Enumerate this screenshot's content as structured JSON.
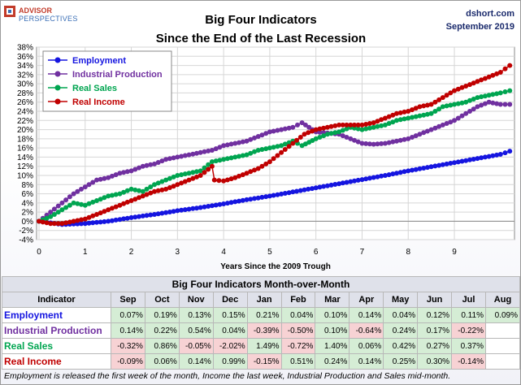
{
  "logo": {
    "main": "ADVISOR",
    "sub": "PERSPECTIVES"
  },
  "source": "dshort.com",
  "date": "September 2019",
  "chart_data": {
    "type": "line",
    "title": "Big Four Indicators",
    "subtitle": "Since the End of the Last Recession",
    "xlabel": "Years Since the 2009 Trough",
    "ylabel": "",
    "xlim": [
      0,
      10.25
    ],
    "ylim": [
      -4,
      38
    ],
    "x_ticks": [
      "0",
      "1",
      "2",
      "3",
      "4",
      "5",
      "6",
      "7",
      "8",
      "9"
    ],
    "y_ticks": [
      "38%",
      "36%",
      "34%",
      "32%",
      "30%",
      "28%",
      "26%",
      "24%",
      "22%",
      "20%",
      "18%",
      "16%",
      "14%",
      "12%",
      "10%",
      "8%",
      "6%",
      "4%",
      "2%",
      "0%",
      "-2%",
      "-4%"
    ],
    "grid": true,
    "legend_position": "top-left",
    "series": [
      {
        "name": "Employment",
        "color": "#1515e0",
        "points": [
          [
            0,
            0
          ],
          [
            0.5,
            -0.7
          ],
          [
            1,
            -0.5
          ],
          [
            1.5,
            0
          ],
          [
            2,
            0.8
          ],
          [
            2.5,
            1.5
          ],
          [
            3,
            2.3
          ],
          [
            3.5,
            3
          ],
          [
            4,
            3.8
          ],
          [
            4.5,
            4.7
          ],
          [
            5,
            5.5
          ],
          [
            5.5,
            6.4
          ],
          [
            6,
            7.3
          ],
          [
            6.5,
            8.2
          ],
          [
            7,
            9.1
          ],
          [
            7.5,
            10
          ],
          [
            8,
            11
          ],
          [
            8.5,
            11.9
          ],
          [
            9,
            12.8
          ],
          [
            9.5,
            13.7
          ],
          [
            10,
            14.6
          ],
          [
            10.2,
            15.3
          ]
        ]
      },
      {
        "name": "Industrial Production",
        "color": "#7030a0",
        "points": [
          [
            0,
            0
          ],
          [
            0.25,
            2
          ],
          [
            0.5,
            4
          ],
          [
            0.75,
            6
          ],
          [
            1,
            7.5
          ],
          [
            1.25,
            9
          ],
          [
            1.5,
            9.5
          ],
          [
            1.75,
            10.5
          ],
          [
            2,
            11
          ],
          [
            2.25,
            12
          ],
          [
            2.5,
            12.5
          ],
          [
            2.75,
            13.5
          ],
          [
            3,
            14
          ],
          [
            3.25,
            14.5
          ],
          [
            3.5,
            15
          ],
          [
            3.75,
            15.5
          ],
          [
            4,
            16.5
          ],
          [
            4.25,
            17
          ],
          [
            4.5,
            17.5
          ],
          [
            4.75,
            18.5
          ],
          [
            5,
            19.5
          ],
          [
            5.25,
            20
          ],
          [
            5.5,
            20.5
          ],
          [
            5.7,
            21.5
          ],
          [
            6,
            19.5
          ],
          [
            6.5,
            19
          ],
          [
            7,
            17
          ],
          [
            7.25,
            16.8
          ],
          [
            7.5,
            17
          ],
          [
            7.75,
            17.5
          ],
          [
            8,
            18
          ],
          [
            8.25,
            19
          ],
          [
            8.5,
            20
          ],
          [
            8.75,
            21
          ],
          [
            9,
            22
          ],
          [
            9.25,
            23.5
          ],
          [
            9.5,
            25
          ],
          [
            9.75,
            26
          ],
          [
            10,
            25.5
          ],
          [
            10.2,
            25.5
          ]
        ]
      },
      {
        "name": "Real Sales",
        "color": "#00a550",
        "points": [
          [
            0,
            0
          ],
          [
            0.25,
            1
          ],
          [
            0.5,
            2.5
          ],
          [
            0.75,
            4
          ],
          [
            1,
            3.5
          ],
          [
            1.25,
            4.5
          ],
          [
            1.5,
            5.5
          ],
          [
            1.75,
            6
          ],
          [
            2,
            7
          ],
          [
            2.25,
            6.5
          ],
          [
            2.5,
            8
          ],
          [
            2.75,
            9
          ],
          [
            3,
            10
          ],
          [
            3.25,
            10.5
          ],
          [
            3.5,
            11
          ],
          [
            3.75,
            13
          ],
          [
            4,
            13.5
          ],
          [
            4.25,
            14
          ],
          [
            4.5,
            14.5
          ],
          [
            4.75,
            15.5
          ],
          [
            5,
            16
          ],
          [
            5.25,
            16.5
          ],
          [
            5.5,
            17.5
          ],
          [
            5.7,
            16.5
          ],
          [
            6,
            18
          ],
          [
            6.25,
            19
          ],
          [
            6.5,
            19.5
          ],
          [
            6.75,
            20.5
          ],
          [
            7,
            20
          ],
          [
            7.5,
            21
          ],
          [
            7.75,
            22
          ],
          [
            8,
            22.5
          ],
          [
            8.25,
            23
          ],
          [
            8.5,
            23.5
          ],
          [
            8.75,
            25
          ],
          [
            9,
            25.5
          ],
          [
            9.25,
            26
          ],
          [
            9.5,
            27
          ],
          [
            9.75,
            27.5
          ],
          [
            10,
            28
          ],
          [
            10.2,
            28.5
          ]
        ]
      },
      {
        "name": "Real Income",
        "color": "#c00000",
        "points": [
          [
            0,
            0
          ],
          [
            0.25,
            -0.5
          ],
          [
            0.5,
            -0.5
          ],
          [
            0.75,
            0
          ],
          [
            1,
            0.5
          ],
          [
            1.25,
            1.5
          ],
          [
            1.5,
            2.5
          ],
          [
            1.75,
            3.5
          ],
          [
            2,
            4.5
          ],
          [
            2.25,
            5.5
          ],
          [
            2.5,
            6.5
          ],
          [
            2.75,
            7
          ],
          [
            3,
            8
          ],
          [
            3.25,
            9
          ],
          [
            3.5,
            10
          ],
          [
            3.75,
            12
          ],
          [
            3.8,
            9
          ],
          [
            4,
            8.8
          ],
          [
            4.25,
            9.5
          ],
          [
            4.5,
            10.5
          ],
          [
            4.75,
            11.5
          ],
          [
            5,
            13
          ],
          [
            5.25,
            15
          ],
          [
            5.5,
            17
          ],
          [
            5.75,
            19
          ],
          [
            6,
            20
          ],
          [
            6.25,
            20.5
          ],
          [
            6.5,
            21
          ],
          [
            6.75,
            21
          ],
          [
            7,
            21
          ],
          [
            7.25,
            21.5
          ],
          [
            7.5,
            22.5
          ],
          [
            7.75,
            23.5
          ],
          [
            8,
            24
          ],
          [
            8.25,
            25
          ],
          [
            8.5,
            25.5
          ],
          [
            8.75,
            27
          ],
          [
            9,
            28.5
          ],
          [
            9.25,
            29.5
          ],
          [
            9.5,
            30.5
          ],
          [
            9.75,
            31.5
          ],
          [
            10,
            32.5
          ],
          [
            10.2,
            34
          ]
        ]
      }
    ]
  },
  "table": {
    "title": "Big Four Indicators Month-over-Month",
    "header": [
      "Indicator",
      "Sep",
      "Oct",
      "Nov",
      "Dec",
      "Jan",
      "Feb",
      "Mar",
      "Apr",
      "May",
      "Jun",
      "Jul",
      "Aug"
    ],
    "rows": [
      {
        "label": "Employment",
        "color": "#1515e0",
        "values": [
          "0.07%",
          "0.19%",
          "0.13%",
          "0.15%",
          "0.21%",
          "0.04%",
          "0.10%",
          "0.14%",
          "0.04%",
          "0.12%",
          "0.11%",
          "0.09%"
        ]
      },
      {
        "label": "Industrial Production",
        "color": "#7030a0",
        "values": [
          "0.14%",
          "0.22%",
          "0.54%",
          "0.04%",
          "-0.39%",
          "-0.50%",
          "0.10%",
          "-0.64%",
          "0.24%",
          "0.17%",
          "-0.22%",
          ""
        ]
      },
      {
        "label": "Real Sales",
        "color": "#00a550",
        "values": [
          "-0.32%",
          "0.86%",
          "-0.05%",
          "-2.02%",
          "1.49%",
          "-0.72%",
          "1.40%",
          "0.06%",
          "0.42%",
          "0.27%",
          "0.37%",
          ""
        ]
      },
      {
        "label": "Real Income",
        "color": "#c00000",
        "values": [
          "-0.09%",
          "0.06%",
          "0.14%",
          "0.99%",
          "-0.15%",
          "0.51%",
          "0.24%",
          "0.14%",
          "0.25%",
          "0.30%",
          "-0.14%",
          ""
        ]
      }
    ]
  },
  "footnote": "Employment is released the first week of the month, Income the last week, Industrial Production and Sales mid-month."
}
